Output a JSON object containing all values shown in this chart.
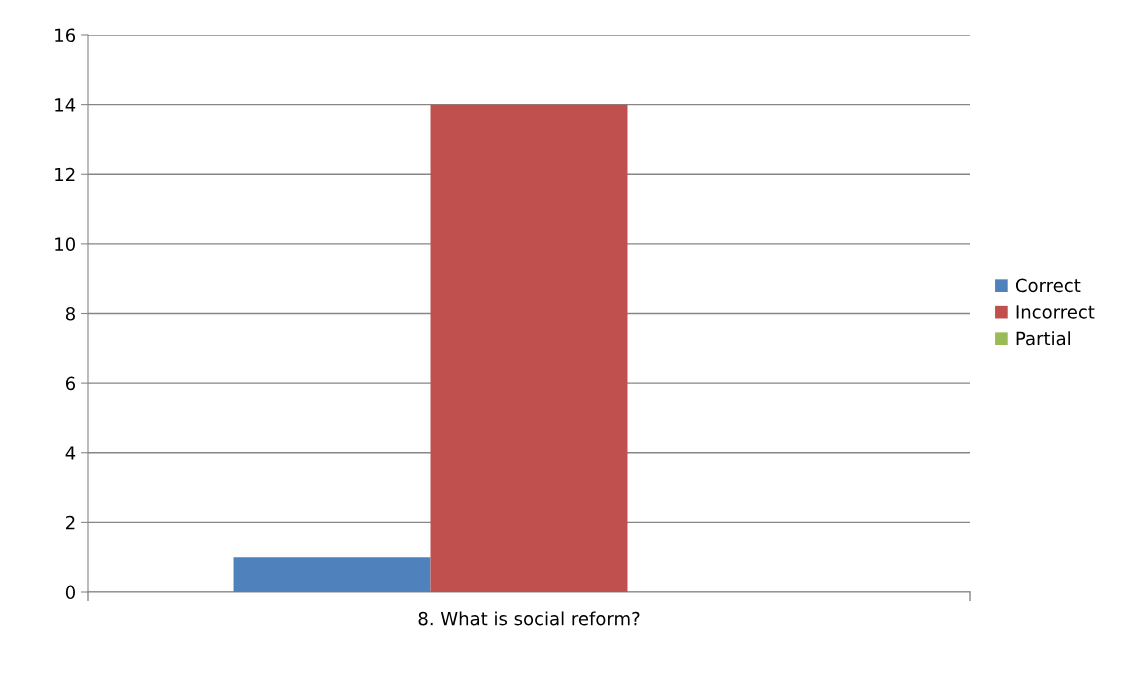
{
  "chart_data": {
    "type": "bar",
    "categories": [
      "8. What is social reform?"
    ],
    "series": [
      {
        "name": "Correct",
        "color": "#4f81bd",
        "values": [
          1
        ]
      },
      {
        "name": "Incorrect",
        "color": "#c0504d",
        "values": [
          14
        ]
      },
      {
        "name": "Partial",
        "color": "#9bbb59",
        "values": [
          0
        ]
      }
    ],
    "ylim": [
      0,
      16
    ],
    "yticks": [
      0,
      2,
      4,
      6,
      8,
      10,
      12,
      14,
      16
    ],
    "grid": "y",
    "legend": "right"
  }
}
